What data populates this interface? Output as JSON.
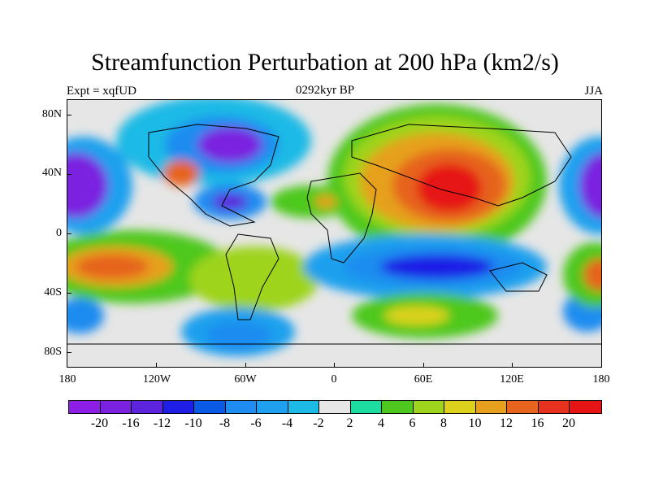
{
  "title": "Streamfunction Perturbation at 200 hPa (km2/s)",
  "subtitle_left": "Expt = xqfUD",
  "subtitle_center": "0292kyr BP",
  "subtitle_right": "JJA",
  "y_axis_labels": [
    "80N",
    "40N",
    "0",
    "40S",
    "80S"
  ],
  "x_axis_labels": [
    "180",
    "120W",
    "60W",
    "0",
    "60E",
    "120E",
    "180"
  ],
  "colorbar": {
    "colors": [
      "#8c1ee6",
      "#7a22e0",
      "#5c24dc",
      "#1e1ee6",
      "#0a5ae6",
      "#1e8cf0",
      "#1ea0ee",
      "#1ebae6",
      "#e6e6e6",
      "#1edca0",
      "#4ec81e",
      "#9ed41e",
      "#dcd21e",
      "#e6a01e",
      "#e6641e",
      "#e6321e",
      "#e61414"
    ],
    "labels": [
      "-20",
      "-16",
      "-12",
      "-10",
      "-8",
      "-6",
      "-4",
      "-2",
      "2",
      "4",
      "6",
      "8",
      "10",
      "12",
      "16",
      "20"
    ]
  }
}
